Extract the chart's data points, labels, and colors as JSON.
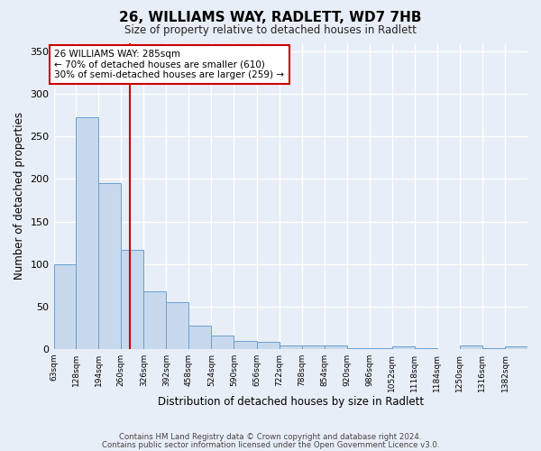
{
  "title": "26, WILLIAMS WAY, RADLETT, WD7 7HB",
  "subtitle": "Size of property relative to detached houses in Radlett",
  "xlabel": "Distribution of detached houses by size in Radlett",
  "ylabel": "Number of detached properties",
  "bar_color": "#c8d9ed",
  "bar_edge_color": "#6a9fd0",
  "background_color": "#e8eef7",
  "grid_color": "#ffffff",
  "fig_background": "#e8eef7",
  "bin_labels": [
    "63sqm",
    "128sqm",
    "194sqm",
    "260sqm",
    "326sqm",
    "392sqm",
    "458sqm",
    "524sqm",
    "590sqm",
    "656sqm",
    "722sqm",
    "788sqm",
    "854sqm",
    "920sqm",
    "986sqm",
    "1052sqm",
    "1118sqm",
    "1184sqm",
    "1250sqm",
    "1316sqm",
    "1382sqm"
  ],
  "bin_values": [
    100,
    272,
    195,
    117,
    68,
    55,
    27,
    16,
    10,
    8,
    4,
    4,
    4,
    1,
    1,
    3,
    1,
    0,
    4,
    1,
    3
  ],
  "bin_edges": [
    63,
    128,
    194,
    260,
    326,
    392,
    458,
    524,
    590,
    656,
    722,
    788,
    854,
    920,
    986,
    1052,
    1118,
    1184,
    1250,
    1316,
    1382,
    1448
  ],
  "vline_x": 285,
  "vline_color": "#cc0000",
  "annotation_line1": "26 WILLIAMS WAY: 285sqm",
  "annotation_line2": "← 70% of detached houses are smaller (610)",
  "annotation_line3": "30% of semi-detached houses are larger (259) →",
  "annotation_box_color": "#ffffff",
  "annotation_box_edge_color": "#cc0000",
  "ylim": [
    0,
    360
  ],
  "yticks": [
    0,
    50,
    100,
    150,
    200,
    250,
    300,
    350
  ],
  "footer_line1": "Contains HM Land Registry data © Crown copyright and database right 2024.",
  "footer_line2": "Contains public sector information licensed under the Open Government Licence v3.0."
}
